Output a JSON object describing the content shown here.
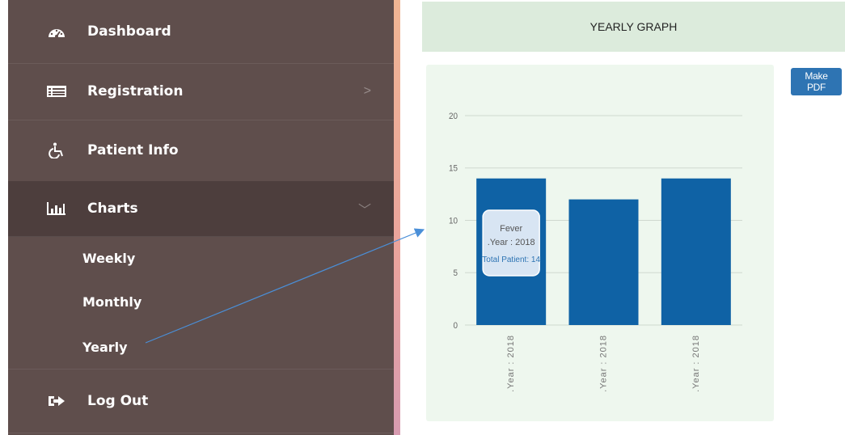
{
  "sidebar": {
    "items": [
      {
        "label": "Dashboard",
        "icon": "dashboard-icon"
      },
      {
        "label": "Registration",
        "icon": "registration-icon",
        "chevron": ">"
      },
      {
        "label": "Patient Info",
        "icon": "wheelchair-icon"
      },
      {
        "label": "Charts",
        "icon": "bar-chart-icon",
        "chevron": "﹀"
      },
      {
        "label": "Log Out",
        "icon": "logout-icon"
      }
    ],
    "submenu": [
      {
        "label": "Weekly"
      },
      {
        "label": "Monthly"
      },
      {
        "label": "Yearly"
      }
    ]
  },
  "header": {
    "title": "YEARLY GRAPH"
  },
  "toolbar": {
    "pdf_label": "Make PDF"
  },
  "colors": {
    "sidebar": "#5f4e4c",
    "bar": "#0f62a5",
    "panel": "#eef7ee",
    "header": "#dcebdc",
    "button": "#2e74b3",
    "arrow": "#4a8fd8"
  },
  "chart_data": {
    "type": "bar",
    "categories": [
      ".Year : 2018",
      ".Year : 2018",
      ".Year : 2018"
    ],
    "values": [
      14,
      12,
      14
    ],
    "ylim": [
      0,
      20
    ],
    "yticks": [
      0,
      5,
      10,
      15,
      20
    ],
    "grid": true,
    "tooltip": {
      "title": "Fever",
      "subtitle": ".Year : 2018",
      "value_label": "Total Patient: 14"
    }
  }
}
